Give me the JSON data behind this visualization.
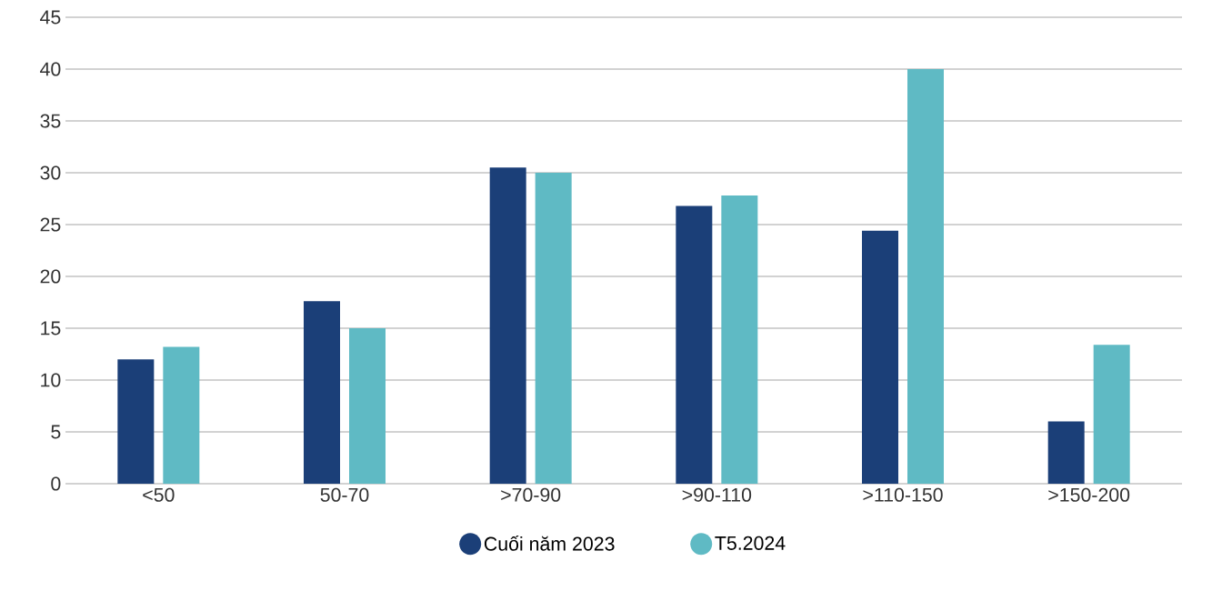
{
  "chart_data": {
    "type": "bar",
    "categories": [
      "<50",
      "50-70",
      ">70-90",
      ">90-110",
      ">110-150",
      ">150-200"
    ],
    "series": [
      {
        "name": "Cuối năm 2023",
        "color": "#1b3f78",
        "values": [
          12.0,
          17.6,
          30.5,
          26.8,
          24.4,
          6.0
        ]
      },
      {
        "name": "T5.2024",
        "color": "#5fbac4",
        "values": [
          13.2,
          15.0,
          30.0,
          27.8,
          40.0,
          13.4
        ]
      }
    ],
    "ylim": [
      0,
      45
    ],
    "yticks": [
      0,
      5,
      10,
      15,
      20,
      25,
      30,
      35,
      40,
      45
    ],
    "grid": "y",
    "legend": "bottom"
  }
}
